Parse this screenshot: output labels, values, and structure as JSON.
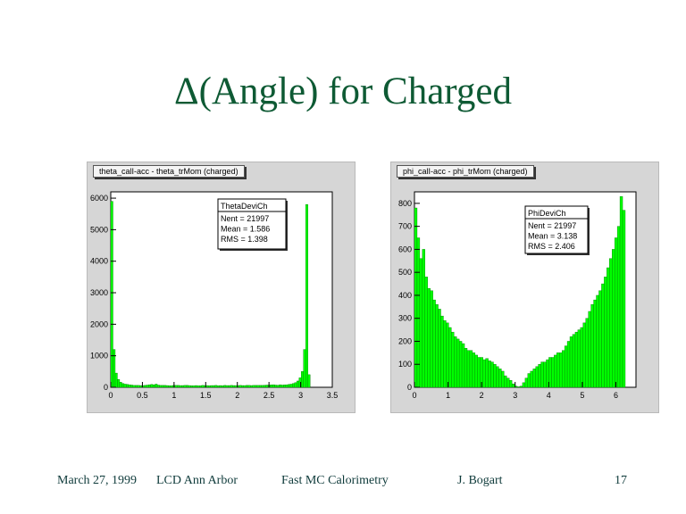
{
  "slide": {
    "title": "Δ(Angle) for Charged",
    "footer": {
      "date": "March 27, 1999",
      "event": "LCD Ann Arbor",
      "topic": "Fast MC Calorimetry",
      "author": "J. Bogart",
      "page": "17"
    }
  },
  "colors": {
    "title": "#0e5a34",
    "fill": "#00ff00",
    "panel": "#d6d6d6",
    "frame": "#ffffff"
  },
  "chart_data": [
    {
      "type": "bar",
      "label": "theta_calI-acc - theta_trMom (charged)",
      "xlim": [
        0,
        3.5
      ],
      "ylim": [
        0,
        6200
      ],
      "xticks": [
        0,
        0.5,
        1,
        1.5,
        2,
        2.5,
        3,
        3.5
      ],
      "xtick_labels": [
        "0",
        "0.5",
        "1",
        "1.5",
        "2",
        "2.5",
        "3",
        "3.5"
      ],
      "yticks": [
        0,
        1000,
        2000,
        3000,
        4000,
        5000,
        6000
      ],
      "ytick_labels": [
        "0",
        "1000",
        "2000",
        "3000",
        "4000",
        "5000",
        "6000"
      ],
      "stats": {
        "name": "ThetaDeviCh",
        "lines": [
          "Nent = 21997",
          "Mean = 1.586",
          "RMS = 1.398"
        ]
      },
      "bin_width": 0.035,
      "x": [
        0,
        0.035,
        0.07,
        0.105,
        0.14,
        0.175,
        0.21,
        0.245,
        0.28,
        0.315,
        0.35,
        0.385,
        0.42,
        0.455,
        0.49,
        0.525,
        0.56,
        0.595,
        0.63,
        0.665,
        0.7,
        0.735,
        0.77,
        0.805,
        0.84,
        0.875,
        0.91,
        0.945,
        0.98,
        1.015,
        1.05,
        1.085,
        1.12,
        1.155,
        1.19,
        1.225,
        1.26,
        1.295,
        1.33,
        1.365,
        1.4,
        1.435,
        1.47,
        1.505,
        1.54,
        1.575,
        1.61,
        1.645,
        1.68,
        1.715,
        1.75,
        1.785,
        1.82,
        1.855,
        1.89,
        1.925,
        1.96,
        1.995,
        2.03,
        2.065,
        2.1,
        2.135,
        2.17,
        2.205,
        2.24,
        2.275,
        2.31,
        2.345,
        2.38,
        2.415,
        2.45,
        2.485,
        2.52,
        2.555,
        2.59,
        2.625,
        2.66,
        2.695,
        2.73,
        2.765,
        2.8,
        2.835,
        2.87,
        2.905,
        2.94,
        2.975,
        3.01,
        3.045,
        3.08,
        3.115
      ],
      "values": [
        5900,
        1200,
        450,
        250,
        160,
        120,
        100,
        90,
        80,
        70,
        60,
        60,
        60,
        55,
        55,
        60,
        70,
        80,
        90,
        80,
        100,
        70,
        60,
        60,
        60,
        55,
        50,
        50,
        60,
        60,
        60,
        55,
        55,
        60,
        60,
        55,
        50,
        50,
        55,
        50,
        50,
        60,
        55,
        55,
        50,
        55,
        55,
        60,
        50,
        55,
        50,
        60,
        55,
        55,
        60,
        55,
        55,
        55,
        60,
        55,
        55,
        60,
        60,
        55,
        60,
        60,
        60,
        60,
        60,
        65,
        70,
        70,
        75,
        80,
        70,
        65,
        80,
        70,
        75,
        80,
        90,
        100,
        120,
        150,
        200,
        300,
        500,
        1200,
        5800,
        400
      ]
    },
    {
      "type": "bar",
      "label": "phi_calI-acc - phi_trMom (charged)",
      "xlim": [
        0,
        6.6
      ],
      "ylim": [
        0,
        850
      ],
      "xticks": [
        0,
        1,
        2,
        3,
        4,
        5,
        6
      ],
      "xtick_labels": [
        "0",
        "1",
        "2",
        "3",
        "4",
        "5",
        "6"
      ],
      "yticks": [
        0,
        100,
        200,
        300,
        400,
        500,
        600,
        700,
        800
      ],
      "ytick_labels": [
        "0",
        "100",
        "200",
        "300",
        "400",
        "500",
        "600",
        "700",
        "800"
      ],
      "stats": {
        "name": "PhiDeviCh",
        "lines": [
          "Nent = 21997",
          "Mean = 3.138",
          "RMS = 2.406"
        ]
      },
      "bin_width": 0.0785,
      "x": [
        0,
        0.0785,
        0.157,
        0.2355,
        0.314,
        0.3925,
        0.471,
        0.5495,
        0.628,
        0.7065,
        0.785,
        0.8635,
        0.942,
        1.0205,
        1.099,
        1.1775,
        1.256,
        1.3345,
        1.413,
        1.4915,
        1.57,
        1.6485,
        1.727,
        1.8055,
        1.884,
        1.9625,
        2.041,
        2.1195,
        2.198,
        2.2765,
        2.355,
        2.4335,
        2.512,
        2.5905,
        2.669,
        2.7475,
        2.826,
        2.9045,
        2.983,
        3.0615,
        3.14,
        3.2185,
        3.297,
        3.3755,
        3.454,
        3.5325,
        3.611,
        3.6895,
        3.768,
        3.8465,
        3.925,
        4.0035,
        4.082,
        4.1605,
        4.239,
        4.3175,
        4.396,
        4.4745,
        4.553,
        4.6315,
        4.71,
        4.7885,
        4.867,
        4.9455,
        5.024,
        5.1025,
        5.181,
        5.2595,
        5.338,
        5.4165,
        5.495,
        5.5735,
        5.652,
        5.7305,
        5.809,
        5.8875,
        5.966,
        6.0445,
        6.123,
        6.2015
      ],
      "values": [
        780,
        650,
        560,
        600,
        480,
        430,
        420,
        380,
        360,
        340,
        310,
        290,
        280,
        260,
        240,
        220,
        210,
        200,
        190,
        170,
        160,
        160,
        150,
        140,
        130,
        130,
        120,
        125,
        115,
        110,
        100,
        90,
        80,
        70,
        50,
        40,
        30,
        15,
        5,
        2,
        5,
        20,
        40,
        60,
        70,
        80,
        90,
        100,
        110,
        110,
        120,
        130,
        130,
        140,
        150,
        150,
        160,
        180,
        200,
        220,
        230,
        240,
        250,
        260,
        280,
        300,
        330,
        360,
        380,
        400,
        420,
        450,
        480,
        520,
        560,
        600,
        650,
        700,
        830,
        770
      ]
    }
  ]
}
